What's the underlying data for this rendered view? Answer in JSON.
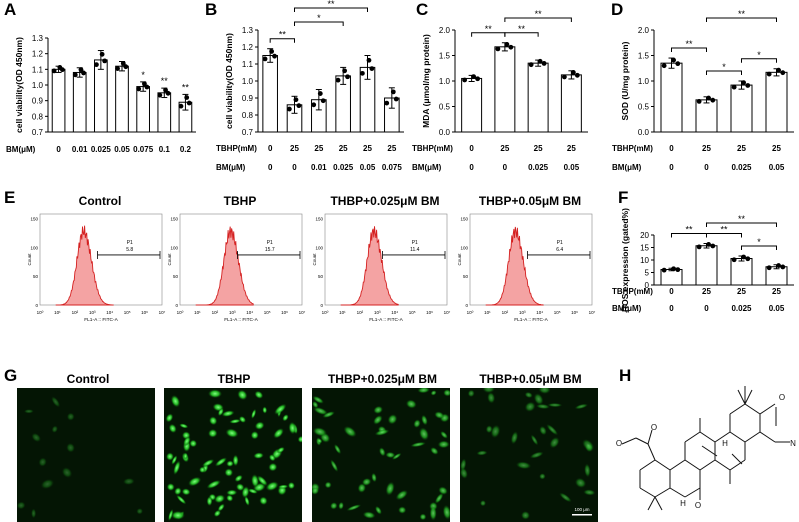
{
  "panel_letters": [
    "A",
    "B",
    "C",
    "D",
    "E",
    "F",
    "G",
    "H"
  ],
  "colors": {
    "bar_fill": "#ffffff",
    "hist_fill": "#f4a3a3",
    "hist_line": "#d42020",
    "micro_bg": "#041504",
    "cell_green": "#3fcf3f"
  },
  "icons": [
    "molecule-structure-icon"
  ],
  "chart_data": [
    {
      "id": "A",
      "type": "bar",
      "ylabel": "cell viability(OD 450nm)",
      "ylim": [
        0.7,
        1.3
      ],
      "yticks": [
        "0.7",
        "0.8",
        "0.9",
        "1.0",
        "1.1",
        "1.2",
        "1.3"
      ],
      "row_labels": [
        "BM(μM)"
      ],
      "rows": [
        [
          "0",
          "0.01",
          "0.025",
          "0.05",
          "0.075",
          "0.1",
          "0.2"
        ]
      ],
      "values": [
        1.1,
        1.08,
        1.16,
        1.12,
        0.99,
        0.95,
        0.89
      ],
      "errors": [
        0.02,
        0.03,
        0.06,
        0.03,
        0.03,
        0.03,
        0.05
      ],
      "bar_marks": [
        "",
        "",
        "",
        "",
        "*",
        "**",
        "**"
      ],
      "brackets": []
    },
    {
      "id": "B",
      "type": "bar",
      "ylabel": "cell viability(OD 450nm)",
      "ylim": [
        0.7,
        1.3
      ],
      "yticks": [
        "0.7",
        "0.8",
        "0.9",
        "1.0",
        "1.1",
        "1.2",
        "1.3"
      ],
      "row_labels": [
        "TBHP(mM)",
        "BM(μM)"
      ],
      "rows": [
        [
          "0",
          "25",
          "25",
          "25",
          "25",
          "25"
        ],
        [
          "0",
          "0",
          "0.01",
          "0.025",
          "0.05",
          "0.075"
        ]
      ],
      "values": [
        1.15,
        0.86,
        0.89,
        1.03,
        1.08,
        0.9
      ],
      "errors": [
        0.04,
        0.05,
        0.06,
        0.05,
        0.07,
        0.06
      ],
      "bar_marks": [
        "",
        "",
        "",
        "",
        "",
        ""
      ],
      "brackets": [
        {
          "from": 0,
          "to": 1,
          "label": "**"
        },
        {
          "from": 1,
          "to": 3,
          "label": "*"
        },
        {
          "from": 1,
          "to": 4,
          "label": "**"
        }
      ]
    },
    {
      "id": "C",
      "type": "bar",
      "ylabel": "MDA (μmol/mg protein)",
      "ylim": [
        0,
        2
      ],
      "yticks": [
        "0.0",
        "0.5",
        "1.0",
        "1.5",
        "2.0"
      ],
      "row_labels": [
        "TBHP(mM)",
        "BM(μM)"
      ],
      "rows": [
        [
          "0",
          "25",
          "25",
          "25"
        ],
        [
          "0",
          "0",
          "0.025",
          "0.05"
        ]
      ],
      "values": [
        1.05,
        1.67,
        1.35,
        1.12
      ],
      "errors": [
        0.06,
        0.08,
        0.06,
        0.08
      ],
      "bar_marks": [
        "",
        "",
        "",
        ""
      ],
      "brackets": [
        {
          "from": 0,
          "to": 1,
          "label": "**"
        },
        {
          "from": 1,
          "to": 2,
          "label": "**"
        },
        {
          "from": 1,
          "to": 3,
          "label": "**"
        }
      ]
    },
    {
      "id": "D",
      "type": "bar",
      "ylabel": "SOD (U/mg protein)",
      "ylim": [
        0,
        2
      ],
      "yticks": [
        "0.0",
        "0.5",
        "1.0",
        "1.5",
        "2.0"
      ],
      "row_labels": [
        "TBHP(mM)",
        "BM(μM)"
      ],
      "rows": [
        [
          "0",
          "25",
          "25",
          "25"
        ],
        [
          "0",
          "0",
          "0.025",
          "0.05"
        ]
      ],
      "values": [
        1.35,
        0.63,
        0.92,
        1.17
      ],
      "errors": [
        0.1,
        0.06,
        0.08,
        0.07
      ],
      "bar_marks": [
        "",
        "",
        "",
        ""
      ],
      "brackets": [
        {
          "from": 0,
          "to": 1,
          "label": "**"
        },
        {
          "from": 1,
          "to": 2,
          "label": "*"
        },
        {
          "from": 2,
          "to": 3,
          "label": "*"
        },
        {
          "from": 1,
          "to": 3,
          "label": "**"
        }
      ]
    },
    {
      "id": "F",
      "type": "bar",
      "ylabel": "ROS expression (gated%)",
      "ylim": [
        0,
        20
      ],
      "yticks": [
        "0",
        "5",
        "10",
        "15",
        "20"
      ],
      "row_labels": [
        "TBHP(mM)",
        "BM(μM)"
      ],
      "rows": [
        [
          "0",
          "25",
          "25",
          "25"
        ],
        [
          "0",
          "0",
          "0.025",
          "0.05"
        ]
      ],
      "values": [
        6.2,
        15.7,
        10.6,
        7.3
      ],
      "errors": [
        0.5,
        0.9,
        1.0,
        0.8
      ],
      "bar_marks": [
        "",
        "",
        "",
        ""
      ],
      "brackets": [
        {
          "from": 0,
          "to": 1,
          "label": "**"
        },
        {
          "from": 1,
          "to": 2,
          "label": "**"
        },
        {
          "from": 2,
          "to": 3,
          "label": "*"
        },
        {
          "from": 1,
          "to": 3,
          "label": "**"
        }
      ]
    },
    {
      "id": "E",
      "type": "histogram",
      "xlabel": "FL1-A :: FITC-A",
      "ylabel": "Count",
      "yticks": [
        "0",
        "50",
        "100",
        "150"
      ],
      "xticks": [
        "10⁰",
        "10¹",
        "10²",
        "10³",
        "10⁴",
        "10⁵",
        "10⁶",
        "10⁷"
      ],
      "gate_label": "P1",
      "histograms": [
        {
          "title": "Control",
          "gate_value": "5.8",
          "peak_decade": 2.5
        },
        {
          "title": "TBHP",
          "gate_value": "15.7",
          "peak_decade": 2.9
        },
        {
          "title": "THBP+0.025μM BM",
          "gate_value": "11.4",
          "peak_decade": 2.8
        },
        {
          "title": "THBP+0.05μM BM",
          "gate_value": "6.4",
          "peak_decade": 2.6
        }
      ]
    }
  ],
  "micrographs": {
    "titles": [
      "Control",
      "TBHP",
      "THBP+0.025μM BM",
      "THBP+0.05μM BM"
    ],
    "cell_density": [
      0.1,
      1.0,
      0.65,
      0.35
    ],
    "scale_bar": "100 μm"
  },
  "structure_atoms": {
    "o1": "O",
    "o2": "O",
    "o3": "O",
    "o4": "O",
    "n": "N",
    "h1": "H",
    "h2": "H"
  }
}
